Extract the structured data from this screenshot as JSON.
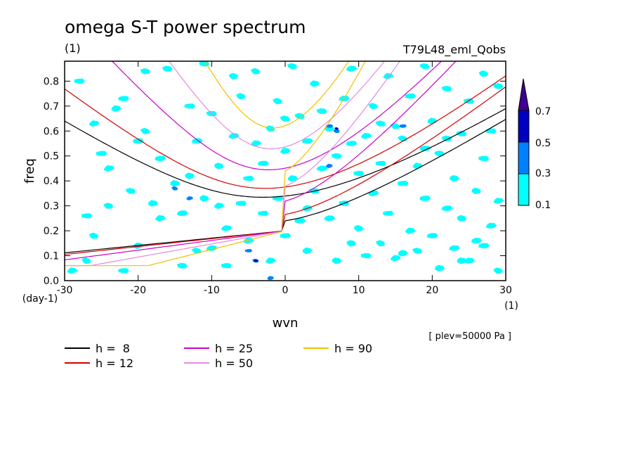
{
  "chart_data": {
    "type": "contour",
    "title": "omega S-T power spectrum",
    "subtitle_left": "(1)",
    "subtitle_right": "T79L48_eml_Qobs",
    "xlabel": "wvn",
    "ylabel": "freq",
    "x_unit_label": "(1)",
    "y_unit_label": "(day-1)",
    "level_note": "[ plev=50000 Pa ]",
    "xlim": [
      -30,
      30
    ],
    "ylim": [
      0,
      0.88
    ],
    "x_ticks": [
      -30,
      -20,
      -10,
      0,
      10,
      20,
      30
    ],
    "x_tick_labels": [
      "-30",
      "-20",
      "-10",
      "0",
      "10",
      "20",
      "30"
    ],
    "y_ticks": [
      0.0,
      0.1,
      0.2,
      0.3,
      0.4,
      0.5,
      0.6,
      0.7,
      0.8
    ],
    "y_tick_labels": [
      "0.0",
      "0.1",
      "0.2",
      "0.3",
      "0.4",
      "0.5",
      "0.6",
      "0.7",
      "0.8"
    ],
    "colorbar": {
      "levels": [
        "0.1",
        "0.3",
        "0.5",
        "0.7"
      ],
      "colors": [
        "#00ffff",
        "#0080ff",
        "#0000c0",
        "#400090"
      ]
    },
    "dispersion_curves": [
      {
        "label": "h =  8",
        "h": 8,
        "color": "#000000"
      },
      {
        "label": "h = 12",
        "h": 12,
        "color": "#d00000"
      },
      {
        "label": "h = 25",
        "h": 25,
        "color": "#cc00cc"
      },
      {
        "label": "h = 50",
        "h": 50,
        "color": "#e08ce0"
      },
      {
        "label": "h = 90",
        "h": 90,
        "color": "#f0c000"
      }
    ],
    "power_patches_cyan": [
      [
        -29,
        0.04
      ],
      [
        -27,
        0.26
      ],
      [
        -27,
        0.08
      ],
      [
        -26,
        0.63
      ],
      [
        -25,
        0.51
      ],
      [
        -24,
        0.3
      ],
      [
        -23,
        0.69
      ],
      [
        -22,
        0.73
      ],
      [
        -21,
        0.36
      ],
      [
        -20,
        0.14
      ],
      [
        -20,
        0.56
      ],
      [
        -19,
        0.84
      ],
      [
        -18,
        0.31
      ],
      [
        -17,
        0.49
      ],
      [
        -16,
        0.85
      ],
      [
        -15,
        0.39
      ],
      [
        -14,
        0.27
      ],
      [
        -14,
        0.06
      ],
      [
        -13,
        0.42
      ],
      [
        -12,
        0.56
      ],
      [
        -11,
        0.87
      ],
      [
        -11,
        0.33
      ],
      [
        -10,
        0.13
      ],
      [
        -10,
        0.67
      ],
      [
        -9,
        0.46
      ],
      [
        -8,
        0.21
      ],
      [
        -8,
        0.06
      ],
      [
        -7,
        0.82
      ],
      [
        -7,
        0.58
      ],
      [
        -6,
        0.31
      ],
      [
        -6,
        0.74
      ],
      [
        -5,
        0.16
      ],
      [
        -5,
        0.41
      ],
      [
        -4,
        0.84
      ],
      [
        -4,
        0.55
      ],
      [
        -3,
        0.27
      ],
      [
        -2,
        0.61
      ],
      [
        -2,
        0.08
      ],
      [
        -1,
        0.33
      ],
      [
        -1,
        0.72
      ],
      [
        0,
        0.52
      ],
      [
        0,
        0.18
      ],
      [
        1,
        0.86
      ],
      [
        1,
        0.41
      ],
      [
        2,
        0.24
      ],
      [
        2,
        0.66
      ],
      [
        3,
        0.12
      ],
      [
        3,
        0.56
      ],
      [
        4,
        0.36
      ],
      [
        4,
        0.79
      ],
      [
        5,
        0.45
      ],
      [
        5,
        0.68
      ],
      [
        6,
        0.61
      ],
      [
        6,
        0.25
      ],
      [
        7,
        0.5
      ],
      [
        7,
        0.08
      ],
      [
        8,
        0.73
      ],
      [
        8,
        0.31
      ],
      [
        9,
        0.15
      ],
      [
        9,
        0.85
      ],
      [
        10,
        0.43
      ],
      [
        10,
        0.21
      ],
      [
        11,
        0.58
      ],
      [
        11,
        0.1
      ],
      [
        12,
        0.7
      ],
      [
        12,
        0.35
      ],
      [
        13,
        0.47
      ],
      [
        13,
        0.15
      ],
      [
        14,
        0.82
      ],
      [
        14,
        0.27
      ],
      [
        15,
        0.62
      ],
      [
        15,
        0.09
      ],
      [
        16,
        0.39
      ],
      [
        16,
        0.57
      ],
      [
        17,
        0.2
      ],
      [
        17,
        0.74
      ],
      [
        18,
        0.12
      ],
      [
        18,
        0.46
      ],
      [
        19,
        0.33
      ],
      [
        19,
        0.86
      ],
      [
        20,
        0.64
      ],
      [
        20,
        0.18
      ],
      [
        21,
        0.51
      ],
      [
        21,
        0.05
      ],
      [
        22,
        0.29
      ],
      [
        22,
        0.77
      ],
      [
        23,
        0.41
      ],
      [
        23,
        0.13
      ],
      [
        24,
        0.59
      ],
      [
        24,
        0.25
      ],
      [
        25,
        0.08
      ],
      [
        25,
        0.72
      ],
      [
        26,
        0.36
      ],
      [
        26,
        0.16
      ],
      [
        27,
        0.49
      ],
      [
        27,
        0.83
      ],
      [
        28,
        0.22
      ],
      [
        28,
        0.6
      ],
      [
        29,
        0.04
      ],
      [
        29,
        0.32
      ],
      [
        -28,
        0.8
      ],
      [
        -26,
        0.18
      ],
      [
        -24,
        0.45
      ],
      [
        -22,
        0.04
      ],
      [
        -19,
        0.6
      ],
      [
        -17,
        0.25
      ],
      [
        -13,
        0.7
      ],
      [
        -12,
        0.12
      ],
      [
        -9,
        0.3
      ],
      [
        -3,
        0.47
      ],
      [
        0,
        0.65
      ],
      [
        3,
        0.29
      ],
      [
        9,
        0.55
      ],
      [
        13,
        0.63
      ],
      [
        16,
        0.11
      ],
      [
        19,
        0.53
      ],
      [
        22,
        0.57
      ],
      [
        24,
        0.08
      ],
      [
        27,
        0.14
      ],
      [
        29,
        0.78
      ]
    ],
    "power_patches_blue": [
      [
        -15,
        0.37
      ],
      [
        -13,
        0.33
      ],
      [
        -5,
        0.12
      ],
      [
        -4,
        0.08
      ],
      [
        -2,
        0.01
      ],
      [
        6,
        0.62
      ],
      [
        7,
        0.6
      ],
      [
        6,
        0.46
      ],
      [
        16,
        0.62
      ]
    ],
    "power_patches_dark": [
      [
        -4,
        0.08
      ],
      [
        7,
        0.61
      ]
    ]
  }
}
